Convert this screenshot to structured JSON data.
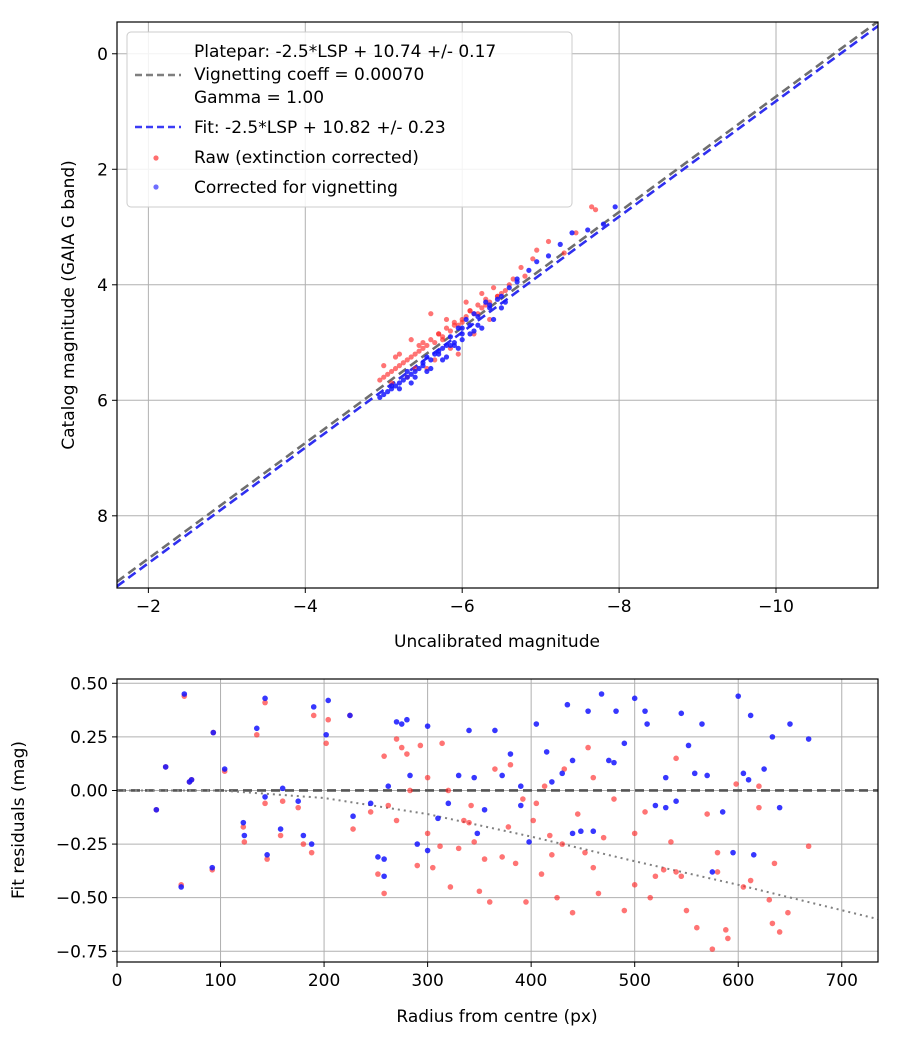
{
  "chart_data": [
    {
      "type": "scatter",
      "title": "",
      "xlabel": "Uncalibrated magnitude",
      "ylabel": "Catalog magnitude (GAIA G band)",
      "xlim": [
        -1.6,
        -11.3
      ],
      "ylim": [
        9.25,
        -0.55
      ],
      "x_inverted": true,
      "y_inverted": true,
      "grid": true,
      "xticks": [
        -2,
        -4,
        -6,
        -8,
        -10
      ],
      "xtick_labels": [
        "−2",
        "−4",
        "−6",
        "−8",
        "−10"
      ],
      "yticks": [
        0,
        2,
        4,
        6,
        8
      ],
      "ytick_labels": [
        "0",
        "2",
        "4",
        "6",
        "8"
      ],
      "legend_position": "top-left",
      "legend": [
        {
          "label": "Platepar: -2.5*LSP + 10.74 +/- 0.17",
          "marker": "none"
        },
        {
          "label": "Vignetting coeff = 0.00070",
          "marker": "dashed-line",
          "color": "#7f7f7f"
        },
        {
          "label": "Gamma = 1.00",
          "marker": "none"
        },
        {
          "label": "Fit: -2.5*LSP + 10.82 +/- 0.23",
          "marker": "dashed-line",
          "color": "#3b3bf5"
        },
        {
          "label": "Raw (extinction corrected)",
          "marker": "dot",
          "color": "#ff3030"
        },
        {
          "label": "Corrected for vignetting",
          "marker": "dot",
          "color": "#3030ff"
        }
      ],
      "lines": [
        {
          "name": "Platepar",
          "slope": 1.0,
          "intercept": 10.74,
          "color": "#6e6e6e",
          "style": "dashed"
        },
        {
          "name": "Fit",
          "slope": 1.0,
          "intercept": 10.82,
          "color": "#2f2ff0",
          "style": "dashed"
        }
      ],
      "series": [
        {
          "name": "Raw (extinction corrected)",
          "color": "#ff2a2a",
          "x": [
            -7.65,
            -7.7,
            -7.45,
            -7.1,
            -7.3,
            -6.95,
            -6.9,
            -6.75,
            -6.8,
            -6.65,
            -6.6,
            -6.55,
            -6.5,
            -6.45,
            -6.35,
            -6.3,
            -6.25,
            -6.2,
            -6.15,
            -6.1,
            -6.05,
            -6.0,
            -5.95,
            -5.9,
            -5.85,
            -5.8,
            -5.75,
            -5.7,
            -5.65,
            -5.6,
            -5.55,
            -5.5,
            -5.45,
            -5.4,
            -5.35,
            -5.3,
            -5.25,
            -5.2,
            -5.15,
            -5.1,
            -5.05,
            -5.0,
            -4.95,
            -5.6,
            -5.8,
            -6.05,
            -6.25,
            -6.4,
            -5.35,
            -5.15,
            -5.45,
            -5.75,
            -5.9,
            -6.1,
            -6.3,
            -5.0,
            -5.2,
            -5.5,
            -5.7,
            -6.0,
            -6.2,
            -6.45,
            -5.1,
            -5.3,
            -5.55,
            -5.85,
            -6.15,
            -6.35,
            -5.4,
            -5.65,
            -5.95
          ],
          "y": [
            2.65,
            2.7,
            3.1,
            3.25,
            3.45,
            3.4,
            3.55,
            3.7,
            3.85,
            3.9,
            4.0,
            4.1,
            4.15,
            4.2,
            4.3,
            4.25,
            4.4,
            4.35,
            4.5,
            4.45,
            4.55,
            4.6,
            4.7,
            4.65,
            4.8,
            4.75,
            4.9,
            4.85,
            5.0,
            4.95,
            5.05,
            5.1,
            5.15,
            5.2,
            5.25,
            5.3,
            5.35,
            5.4,
            5.45,
            5.5,
            5.55,
            5.6,
            5.65,
            4.5,
            4.6,
            4.3,
            4.15,
            4.05,
            4.95,
            5.25,
            5.05,
            4.95,
            4.7,
            4.45,
            4.35,
            5.4,
            5.2,
            5.0,
            4.85,
            4.65,
            4.5,
            4.2,
            5.7,
            5.6,
            5.45,
            5.1,
            4.85,
            4.6,
            5.45,
            5.3,
            5.2
          ]
        },
        {
          "name": "Corrected for vignetting",
          "color": "#1818ff",
          "x": [
            -7.95,
            -7.8,
            -7.6,
            -7.4,
            -7.25,
            -7.1,
            -6.95,
            -6.85,
            -6.7,
            -6.6,
            -6.5,
            -6.45,
            -6.35,
            -6.3,
            -6.2,
            -6.15,
            -6.1,
            -6.05,
            -6.0,
            -5.95,
            -5.9,
            -5.85,
            -5.8,
            -5.75,
            -5.7,
            -5.65,
            -5.6,
            -5.55,
            -5.5,
            -5.45,
            -5.4,
            -5.35,
            -5.3,
            -5.25,
            -5.2,
            -5.15,
            -5.1,
            -5.05,
            -5.0,
            -4.95,
            -6.5,
            -6.4,
            -6.25,
            -6.1,
            -5.9,
            -5.7,
            -5.5,
            -5.3,
            -5.1,
            -6.2,
            -6.0,
            -5.8,
            -5.6,
            -5.4,
            -5.2,
            -6.35,
            -6.15,
            -5.95,
            -5.75,
            -5.55,
            -5.35,
            -6.55,
            -6.7,
            -6.0,
            -5.85
          ],
          "y": [
            2.65,
            2.95,
            3.05,
            3.1,
            3.3,
            3.5,
            3.6,
            3.75,
            3.9,
            4.05,
            4.2,
            4.25,
            4.4,
            4.3,
            4.55,
            4.5,
            4.7,
            4.6,
            4.85,
            4.75,
            5.0,
            4.9,
            5.05,
            5.1,
            5.15,
            5.2,
            5.3,
            5.25,
            5.4,
            5.45,
            5.5,
            5.55,
            5.6,
            5.65,
            5.7,
            5.75,
            5.8,
            5.85,
            5.9,
            5.95,
            4.4,
            4.6,
            4.75,
            4.85,
            5.05,
            5.2,
            5.35,
            5.5,
            5.75,
            4.7,
            4.95,
            5.25,
            5.45,
            5.6,
            5.8,
            4.35,
            4.8,
            5.1,
            5.3,
            5.5,
            5.7,
            4.3,
            3.95,
            4.75,
            5.05
          ]
        }
      ]
    },
    {
      "type": "scatter",
      "title": "",
      "xlabel": "Radius from centre (px)",
      "ylabel": "Fit residuals (mag)",
      "xlim": [
        0,
        735
      ],
      "ylim": [
        -0.8,
        0.52
      ],
      "grid": true,
      "xticks": [
        0,
        100,
        200,
        300,
        400,
        500,
        600,
        700
      ],
      "xtick_labels": [
        "0",
        "100",
        "200",
        "300",
        "400",
        "500",
        "600",
        "700"
      ],
      "yticks": [
        0.5,
        0.25,
        0.0,
        -0.25,
        -0.5,
        -0.75
      ],
      "ytick_labels": [
        "0.50",
        "0.25",
        "0.00",
        "−0.25",
        "−0.50",
        "−0.75"
      ],
      "lines": [
        {
          "name": "zero",
          "points": [
            [
              0,
              0.0
            ],
            [
              735,
              0.0
            ]
          ],
          "color": "#555555",
          "style": "dashed"
        },
        {
          "name": "vignetting",
          "points": [
            [
              0,
              0.0
            ],
            [
              100,
              0.0
            ],
            [
              200,
              -0.035
            ],
            [
              300,
              -0.11
            ],
            [
              400,
              -0.215
            ],
            [
              500,
              -0.33
            ],
            [
              600,
              -0.44
            ],
            [
              735,
              -0.6
            ]
          ],
          "color": "#808080",
          "style": "dotted"
        }
      ],
      "series": [
        {
          "name": "Raw (extinction corrected)",
          "color": "#ff2a2a",
          "x": [
            38,
            47,
            62,
            65,
            70,
            72,
            92,
            93,
            104,
            122,
            123,
            135,
            143,
            143,
            145,
            158,
            160,
            175,
            180,
            188,
            190,
            202,
            204,
            225,
            228,
            245,
            252,
            258,
            262,
            270,
            270,
            275,
            280,
            283,
            290,
            293,
            300,
            305,
            312,
            314,
            320,
            322,
            330,
            335,
            342,
            345,
            350,
            355,
            360,
            365,
            372,
            378,
            385,
            392,
            395,
            402,
            405,
            410,
            413,
            418,
            425,
            430,
            432,
            440,
            445,
            452,
            455,
            460,
            465,
            470,
            480,
            490,
            500,
            510,
            515,
            520,
            528,
            535,
            540,
            545,
            550,
            560,
            570,
            575,
            580,
            588,
            590,
            598,
            605,
            612,
            620,
            630,
            633,
            635,
            640,
            648,
            668,
            258,
            300,
            340,
            380,
            420,
            460,
            500,
            540,
            580,
            620
          ],
          "y": [
            -0.09,
            0.11,
            -0.44,
            0.44,
            0.04,
            0.05,
            -0.37,
            0.27,
            0.09,
            -0.17,
            -0.24,
            0.26,
            -0.06,
            0.41,
            -0.32,
            -0.21,
            -0.05,
            -0.08,
            -0.25,
            -0.29,
            0.35,
            0.22,
            0.33,
            0.35,
            -0.18,
            -0.1,
            -0.39,
            -0.48,
            -0.07,
            0.24,
            -0.14,
            0.2,
            0.17,
            0.0,
            -0.35,
            0.21,
            -0.2,
            -0.36,
            -0.26,
            0.22,
            0.0,
            -0.45,
            -0.27,
            -0.14,
            -0.07,
            -0.24,
            -0.47,
            -0.32,
            -0.52,
            0.1,
            -0.31,
            -0.17,
            -0.34,
            -0.04,
            -0.52,
            -0.14,
            -0.06,
            -0.39,
            0.02,
            -0.21,
            -0.5,
            -0.25,
            0.1,
            -0.57,
            -0.11,
            -0.29,
            0.2,
            -0.36,
            -0.48,
            -0.22,
            -0.04,
            -0.56,
            -0.44,
            -0.1,
            -0.5,
            -0.4,
            -0.37,
            -0.24,
            -0.38,
            -0.4,
            -0.56,
            -0.64,
            -0.11,
            -0.74,
            -0.29,
            -0.65,
            -0.69,
            0.03,
            -0.45,
            -0.42,
            -0.08,
            -0.51,
            -0.62,
            -0.34,
            -0.66,
            -0.57,
            -0.26,
            0.16,
            0.06,
            -0.15,
            0.12,
            -0.3,
            0.06,
            -0.2,
            0.15,
            -0.38,
            0.02
          ]
        },
        {
          "name": "Corrected for vignetting",
          "color": "#1414ff",
          "x": [
            38,
            47,
            62,
            65,
            70,
            72,
            92,
            93,
            104,
            122,
            123,
            135,
            143,
            143,
            145,
            158,
            160,
            175,
            180,
            188,
            190,
            202,
            204,
            225,
            228,
            245,
            252,
            258,
            262,
            270,
            275,
            280,
            283,
            290,
            300,
            310,
            320,
            330,
            340,
            348,
            355,
            365,
            372,
            380,
            390,
            398,
            405,
            415,
            420,
            430,
            435,
            440,
            448,
            455,
            460,
            468,
            475,
            482,
            490,
            500,
            510,
            512,
            520,
            530,
            540,
            545,
            552,
            558,
            565,
            575,
            585,
            595,
            600,
            605,
            612,
            615,
            625,
            633,
            640,
            650,
            668,
            258,
            300,
            345,
            390,
            440,
            480,
            530,
            570,
            610
          ],
          "y": [
            -0.09,
            0.11,
            -0.45,
            0.45,
            0.04,
            0.05,
            -0.36,
            0.27,
            0.1,
            -0.15,
            -0.21,
            0.29,
            -0.03,
            0.43,
            -0.3,
            -0.18,
            0.01,
            -0.05,
            -0.21,
            -0.25,
            0.39,
            0.26,
            0.42,
            0.35,
            -0.12,
            -0.06,
            -0.31,
            -0.4,
            0.02,
            0.32,
            0.31,
            0.33,
            0.07,
            -0.25,
            0.3,
            -0.13,
            -0.06,
            0.07,
            0.28,
            -0.2,
            -0.09,
            0.28,
            0.07,
            0.17,
            -0.07,
            -0.24,
            0.31,
            0.18,
            0.04,
            0.08,
            0.4,
            0.14,
            -0.19,
            0.37,
            -0.19,
            0.45,
            0.14,
            0.37,
            0.22,
            0.43,
            0.37,
            0.31,
            -0.07,
            0.06,
            -0.05,
            0.36,
            0.21,
            0.08,
            0.31,
            -0.38,
            -0.1,
            -0.29,
            0.44,
            0.08,
            0.35,
            -0.3,
            0.1,
            0.25,
            -0.08,
            0.31,
            0.24,
            -0.32,
            -0.28,
            0.06,
            0.02,
            -0.2,
            0.13,
            -0.08,
            0.07,
            0.05
          ]
        }
      ]
    }
  ]
}
